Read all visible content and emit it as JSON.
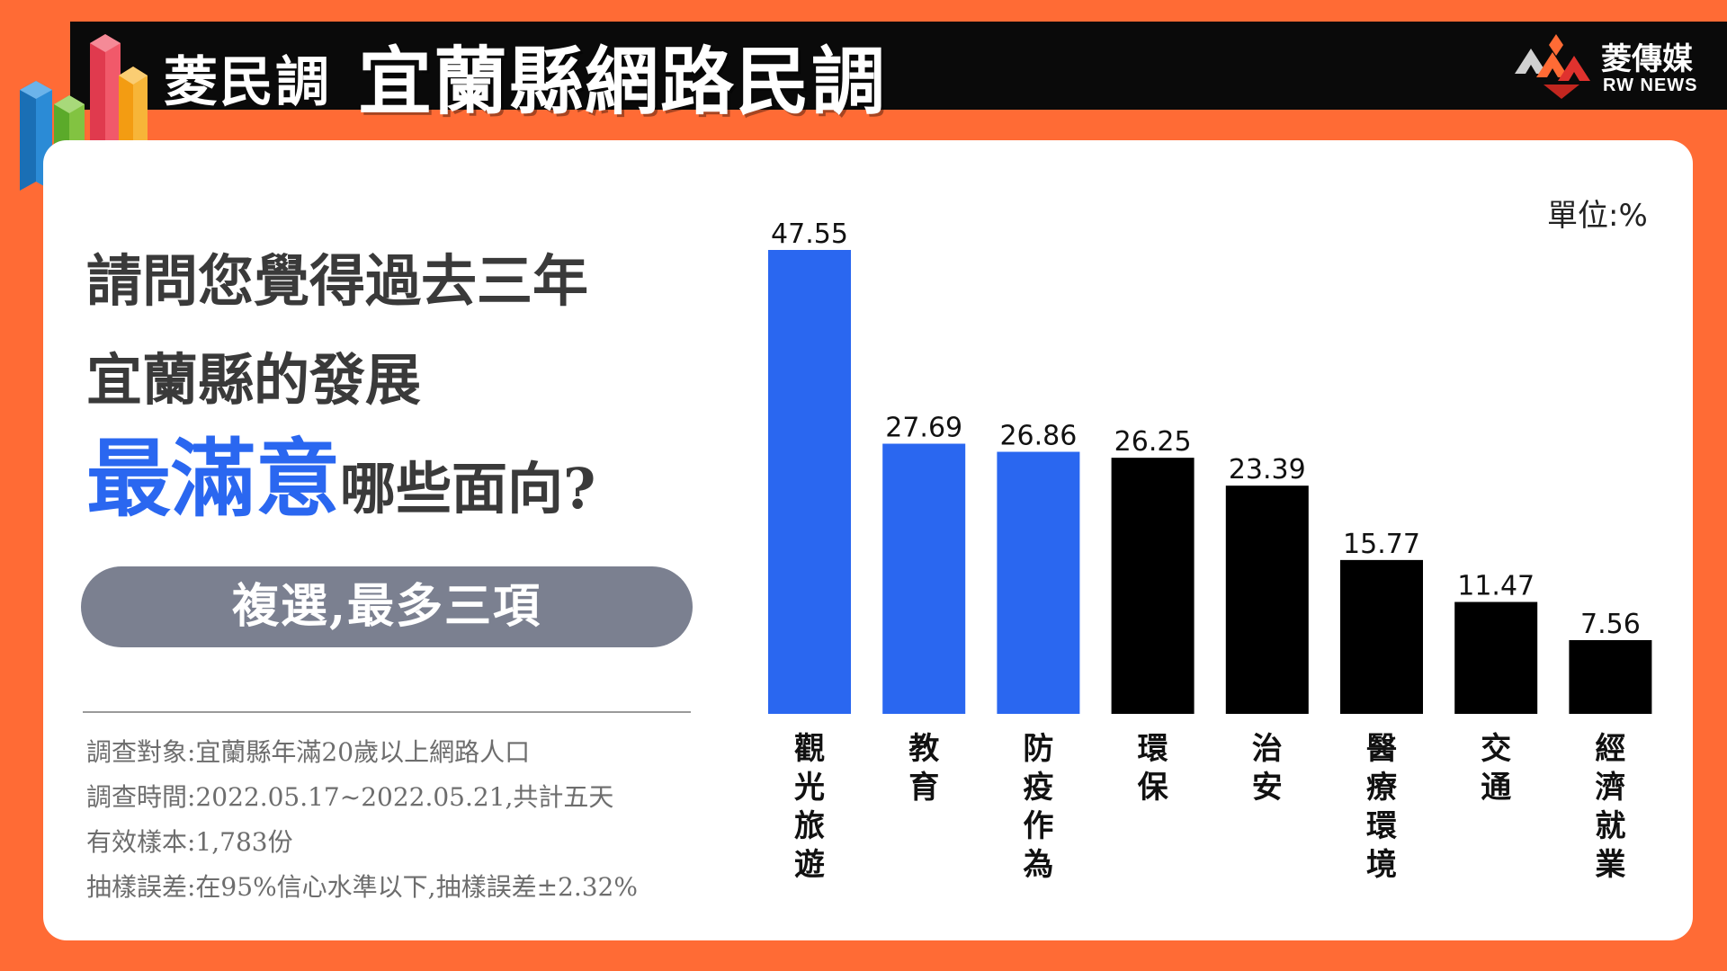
{
  "header": {
    "title_small": "菱民調",
    "title_big": "宜蘭縣網路民調",
    "brand_cn": "菱傳媒",
    "brand_en": "RW NEWS"
  },
  "question": {
    "line1": "請問您覺得過去三年",
    "line2": "宜蘭縣的發展",
    "highlight": "最滿意",
    "line3_rest": "哪些面向?"
  },
  "pill": {
    "label": "複選,最多三項"
  },
  "survey_info": [
    "調查對象:宜蘭縣年滿20歲以上網路人口",
    "調查時間:2022.05.17~2022.05.21,共計五天",
    "有效樣本:1,783份",
    "抽樣誤差:在95%信心水準以下,抽樣誤差±2.32%"
  ],
  "unit_label": "單位:%",
  "colors": {
    "background": "#FF6B35",
    "highlight_blue": "#2A67F0",
    "bar_black": "#000000",
    "pill_gray": "#7b8090"
  },
  "chart_data": {
    "type": "bar",
    "categories": [
      "觀光旅遊",
      "教育",
      "防疫作為",
      "環保",
      "治安",
      "醫療環境",
      "交通",
      "經濟就業"
    ],
    "values": [
      47.55,
      27.69,
      26.86,
      26.25,
      23.39,
      15.77,
      11.47,
      7.56
    ],
    "labels": [
      "47.55",
      "27.69",
      "26.86",
      "26.25",
      "23.39",
      "15.77",
      "11.47",
      "7.56"
    ],
    "bar_colors": [
      "#2A67F0",
      "#2A67F0",
      "#2A67F0",
      "#000000",
      "#000000",
      "#000000",
      "#000000",
      "#000000"
    ],
    "ylim": [
      0,
      47.55
    ],
    "grid": false,
    "legend": "none"
  }
}
